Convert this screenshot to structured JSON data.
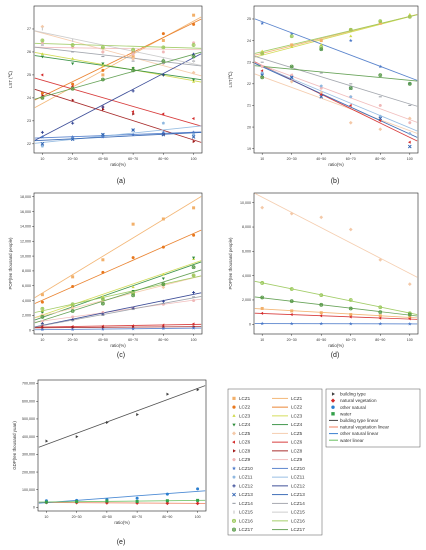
{
  "chart_data": [
    {
      "id": "a",
      "type": "scatter",
      "caption": "(a)",
      "xlabel": "ratio(%)",
      "ylabel": "LST (℃)",
      "categories": [
        "10",
        "20~30",
        "40~50",
        "60~70",
        "80~90",
        "100"
      ],
      "ylim": [
        21.6,
        28
      ],
      "yticks": [
        22,
        23,
        24,
        25,
        26,
        27
      ],
      "series": [
        {
          "name": "LCZ1",
          "color": "#f2b06a",
          "marker": "square",
          "values": [
            24.0,
            24.4,
            25.0,
            25.8,
            26.5,
            27.6
          ]
        },
        {
          "name": "LCZ2",
          "color": "#e8781e",
          "marker": "circle",
          "values": [
            24.2,
            24.6,
            25.2,
            26.0,
            26.8,
            27.2
          ]
        },
        {
          "name": "LCZ3",
          "color": "#cfd94a",
          "marker": "triangle",
          "values": [
            25.9,
            25.7,
            25.4,
            25.3,
            25.0,
            24.7
          ]
        },
        {
          "name": "LCZ4",
          "color": "#2e8b3a",
          "marker": "triangle-down",
          "values": [
            25.8,
            25.5,
            25.5,
            25.3,
            25.0,
            24.8
          ]
        },
        {
          "name": "LCZ5",
          "color": "#f4c9a8",
          "marker": "diamond",
          "values": [
            27.1,
            26.2,
            26.0,
            25.7,
            25.5,
            25.1
          ]
        },
        {
          "name": "LCZ6",
          "color": "#d42a2a",
          "marker": "triangle-left",
          "values": [
            25.0,
            24.5,
            23.6,
            23.4,
            23.3,
            23.1
          ]
        },
        {
          "name": "LCZ8",
          "color": "#a01818",
          "marker": "triangle-right",
          "values": [
            24.1,
            23.9,
            23.5,
            23.3,
            22.4,
            22.1
          ]
        },
        {
          "name": "LCZ9",
          "color": "#f0b8b8",
          "marker": "hexagon",
          "values": [
            26.4,
            26.2,
            26.0,
            25.9,
            26.0,
            26.4
          ]
        },
        {
          "name": "LCZ10",
          "color": "#4a78c8",
          "marker": "star",
          "values": [
            22.3,
            22.3,
            22.3,
            22.4,
            22.5,
            22.5
          ]
        },
        {
          "name": "LCZ11",
          "color": "#8fb8e0",
          "marker": "pentagon",
          "values": [
            21.9,
            22.2,
            22.4,
            22.6,
            22.9,
            22.4
          ]
        },
        {
          "name": "LCZ12",
          "color": "#2b3d8f",
          "marker": "plus",
          "values": [
            22.5,
            22.9,
            23.6,
            24.3,
            25.0,
            25.9
          ]
        },
        {
          "name": "LCZ13",
          "color": "#2b5fb0",
          "marker": "x",
          "values": [
            22.0,
            22.2,
            22.4,
            22.6,
            22.4,
            22.3
          ]
        },
        {
          "name": "LCZ14",
          "color": "#9ca0a8",
          "marker": "dash",
          "values": [
            26.3,
            26.0,
            25.8,
            25.6,
            25.5,
            25.6
          ]
        },
        {
          "name": "LCZ15",
          "color": "#c8c8c8",
          "marker": "bar",
          "values": [
            27.0,
            26.5,
            26.2,
            26.0,
            25.7,
            25.6
          ]
        },
        {
          "name": "LCZ16",
          "color": "#9ac85a",
          "marker": "circle-plus",
          "values": [
            26.5,
            26.3,
            26.2,
            26.1,
            26.2,
            26.3
          ]
        },
        {
          "name": "LCZ17",
          "color": "#5a9b4a",
          "marker": "circle-x",
          "values": [
            24.0,
            24.4,
            24.8,
            25.2,
            25.6,
            25.8
          ]
        }
      ]
    },
    {
      "id": "b",
      "type": "scatter",
      "caption": "(b)",
      "xlabel": "ratio(%)",
      "ylabel": "LST(℃)",
      "categories": [
        "10",
        "20~30",
        "40~50",
        "60~70",
        "80~90",
        "100"
      ],
      "ylim": [
        18.8,
        25.6
      ],
      "yticks": [
        19,
        20,
        21,
        22,
        23,
        24,
        25
      ],
      "series": [
        {
          "name": "LCZ1",
          "color": "#f2b06a",
          "marker": "square",
          "values": [
            23.4,
            23.8,
            24.0,
            24.5,
            24.8,
            25.1
          ]
        },
        {
          "name": "LCZ3",
          "color": "#cfd94a",
          "marker": "triangle",
          "values": [
            23.5,
            23.7,
            23.8,
            24.2,
            24.9,
            25.2
          ]
        },
        {
          "name": "LCZ5",
          "color": "#f4c9a8",
          "marker": "diamond",
          "values": [
            22.3,
            22.1,
            21.6,
            20.2,
            19.9,
            20.4
          ]
        },
        {
          "name": "LCZ6",
          "color": "#d42a2a",
          "marker": "triangle-left",
          "values": [
            22.6,
            22.4,
            21.5,
            21.0,
            20.3,
            19.3
          ]
        },
        {
          "name": "LCZ9",
          "color": "#f0b8b8",
          "marker": "hexagon",
          "values": [
            22.8,
            22.4,
            21.8,
            21.4,
            21.0,
            20.2
          ]
        },
        {
          "name": "LCZ10",
          "color": "#4a78c8",
          "marker": "star",
          "values": [
            24.8,
            24.3,
            23.6,
            24.0,
            22.8,
            22.0
          ]
        },
        {
          "name": "LCZ11",
          "color": "#8fb8e0",
          "marker": "pentagon",
          "values": [
            22.5,
            22.3,
            21.9,
            21.4,
            20.5,
            19.7
          ]
        },
        {
          "name": "LCZ13",
          "color": "#2b5fb0",
          "marker": "x",
          "values": [
            22.4,
            22.3,
            21.4,
            21.8,
            20.4,
            19.1
          ]
        },
        {
          "name": "LCZ14",
          "color": "#9ca0a8",
          "marker": "dash",
          "values": [
            23.0,
            22.8,
            22.5,
            22.0,
            21.4,
            21.0
          ]
        },
        {
          "name": "LCZ16",
          "color": "#9ac85a",
          "marker": "circle-plus",
          "values": [
            23.4,
            24.2,
            23.7,
            24.5,
            24.9,
            25.1
          ]
        },
        {
          "name": "LCZ17",
          "color": "#5a9b4a",
          "marker": "circle-x",
          "values": [
            22.3,
            22.8,
            23.6,
            21.8,
            22.4,
            22.0
          ]
        }
      ]
    },
    {
      "id": "c",
      "type": "scatter",
      "caption": "(c)",
      "xlabel": "ratio(%)",
      "ylabel": "POP(ten thousand people)",
      "categories": [
        "10",
        "20~30",
        "40~50",
        "60~70",
        "80~90",
        "100"
      ],
      "ylim": [
        -500,
        18500
      ],
      "yticks": [
        0,
        2000,
        4000,
        6000,
        8000,
        10000,
        12000,
        14000,
        16000,
        18000
      ],
      "yticklabels": [
        "0",
        "2,000",
        "4,000",
        "6,000",
        "8,000",
        "10,000",
        "12,000",
        "14,000",
        "16,000",
        "18,000"
      ],
      "series": [
        {
          "name": "LCZ1",
          "color": "#f2b06a",
          "marker": "square",
          "values": [
            4800,
            7200,
            9500,
            14300,
            15000,
            16500
          ]
        },
        {
          "name": "LCZ2",
          "color": "#e8781e",
          "marker": "circle",
          "values": [
            3800,
            5900,
            7800,
            9800,
            11200,
            12800
          ]
        },
        {
          "name": "LCZ3",
          "color": "#cfd94a",
          "marker": "triangle",
          "values": [
            2600,
            3300,
            4500,
            5800,
            7500,
            9600
          ]
        },
        {
          "name": "LCZ4",
          "color": "#2e8b3a",
          "marker": "triangle-down",
          "values": [
            2400,
            3100,
            4200,
            5300,
            7000,
            9800
          ]
        },
        {
          "name": "LCZ5",
          "color": "#f4c9a8",
          "marker": "diamond",
          "values": [
            2100,
            3000,
            3800,
            4900,
            5800,
            7400
          ]
        },
        {
          "name": "LCZ6",
          "color": "#d42a2a",
          "marker": "triangle-left",
          "values": [
            500,
            500,
            550,
            600,
            700,
            850
          ]
        },
        {
          "name": "LCZ8",
          "color": "#a01818",
          "marker": "triangle-right",
          "values": [
            350,
            380,
            400,
            420,
            450,
            500
          ]
        },
        {
          "name": "LCZ9",
          "color": "#f0b8b8",
          "marker": "hexagon",
          "values": [
            1200,
            1800,
            2400,
            3000,
            3500,
            4000
          ]
        },
        {
          "name": "LCZ10",
          "color": "#4a78c8",
          "marker": "star",
          "values": [
            100,
            120,
            150,
            200,
            250,
            300
          ]
        },
        {
          "name": "LCZ12",
          "color": "#2b3d8f",
          "marker": "plus",
          "values": [
            900,
            1400,
            2200,
            3000,
            3900,
            5100
          ]
        },
        {
          "name": "LCZ14",
          "color": "#9ca0a8",
          "marker": "dash",
          "values": [
            800,
            1300,
            2000,
            2800,
            3600,
            4500
          ]
        },
        {
          "name": "LCZ16",
          "color": "#9ac85a",
          "marker": "circle-plus",
          "values": [
            2900,
            3500,
            4200,
            5000,
            6200,
            7400
          ]
        },
        {
          "name": "LCZ17",
          "color": "#5a9b4a",
          "marker": "circle-x",
          "values": [
            1800,
            2600,
            3600,
            4700,
            6200,
            8500
          ]
        }
      ]
    },
    {
      "id": "d",
      "type": "scatter",
      "caption": "(d)",
      "xlabel": "ratio(%)",
      "ylabel": "POP(ten thousand people)",
      "categories": [
        "10",
        "20~30",
        "40~50",
        "60~70",
        "80~90",
        "100"
      ],
      "ylim": [
        -800,
        10800
      ],
      "yticks": [
        0,
        2000,
        4000,
        6000,
        8000,
        10000
      ],
      "yticklabels": [
        "0",
        "2,000",
        "4,000",
        "6,000",
        "8,000",
        "10,000"
      ],
      "series": [
        {
          "name": "LCZ1",
          "color": "#f2b06a",
          "marker": "square",
          "values": [
            1300,
            1100,
            950,
            800,
            700,
            600
          ]
        },
        {
          "name": "LCZ5",
          "color": "#f4c9a8",
          "marker": "diamond",
          "values": [
            9600,
            9100,
            8800,
            7800,
            5300,
            3300
          ]
        },
        {
          "name": "LCZ6",
          "color": "#d42a2a",
          "marker": "triangle-left",
          "values": [
            900,
            800,
            700,
            600,
            500,
            450
          ]
        },
        {
          "name": "LCZ10",
          "color": "#4a78c8",
          "marker": "star",
          "values": [
            60,
            50,
            50,
            40,
            40,
            30
          ]
        },
        {
          "name": "LCZ16",
          "color": "#9ac85a",
          "marker": "circle-plus",
          "values": [
            3400,
            2900,
            2400,
            2000,
            1400,
            900
          ]
        },
        {
          "name": "LCZ17",
          "color": "#5a9b4a",
          "marker": "circle-x",
          "values": [
            2200,
            1900,
            1600,
            1300,
            1000,
            800
          ]
        }
      ]
    },
    {
      "id": "e",
      "type": "scatter",
      "caption": "(e)",
      "xlabel": "ratio(%)",
      "ylabel": "GDP(ten thousand yuan)",
      "categories": [
        "10",
        "20~30",
        "40~50",
        "60~70",
        "80~90",
        "100"
      ],
      "ylim": [
        -20000,
        720000
      ],
      "yticks": [
        0,
        100000,
        200000,
        300000,
        400000,
        500000,
        600000,
        700000
      ],
      "yticklabels": [
        "0",
        "100,000",
        "200,000",
        "300,000",
        "400,000",
        "500,000",
        "600,000",
        "700,000"
      ],
      "series": [
        {
          "name": "building type",
          "color": "#404040",
          "marker": "triangle-right",
          "line_color": "#404040",
          "values": [
            375000,
            400000,
            480000,
            525000,
            640000,
            665000
          ]
        },
        {
          "name": "natural vegetation",
          "color": "#d42a2a",
          "marker": "diamond",
          "line_color": "#f08060",
          "values": [
            28000,
            27000,
            26000,
            25000,
            24000,
            23000
          ]
        },
        {
          "name": "other natural",
          "color": "#2b7fd0",
          "marker": "circle",
          "line_color": "#3a7fd0",
          "values": [
            38000,
            40000,
            45000,
            52000,
            75000,
            105000
          ]
        },
        {
          "name": "water",
          "color": "#33a04a",
          "marker": "square",
          "line_color": "#6ac060",
          "values": [
            30000,
            33000,
            36000,
            34000,
            38000,
            40000
          ]
        }
      ]
    }
  ],
  "legend_lcz": {
    "rows": [
      {
        "name": "LCZ1",
        "color": "#f2b06a",
        "marker": "square"
      },
      {
        "name": "LCZ2",
        "color": "#e8781e",
        "marker": "circle"
      },
      {
        "name": "LCZ3",
        "color": "#cfd94a",
        "marker": "triangle"
      },
      {
        "name": "LCZ4",
        "color": "#2e8b3a",
        "marker": "triangle-down"
      },
      {
        "name": "LCZ5",
        "color": "#f4c9a8",
        "marker": "diamond"
      },
      {
        "name": "LCZ6",
        "color": "#d42a2a",
        "marker": "triangle-left"
      },
      {
        "name": "LCZ8",
        "color": "#a01818",
        "marker": "triangle-right"
      },
      {
        "name": "LCZ9",
        "color": "#f0b8b8",
        "marker": "hexagon"
      },
      {
        "name": "LCZ10",
        "color": "#4a78c8",
        "marker": "star"
      },
      {
        "name": "LCZ11",
        "color": "#8fb8e0",
        "marker": "pentagon"
      },
      {
        "name": "LCZ12",
        "color": "#2b3d8f",
        "marker": "plus"
      },
      {
        "name": "LCZ13",
        "color": "#2b5fb0",
        "marker": "x"
      },
      {
        "name": "LCZ14",
        "color": "#9ca0a8",
        "marker": "dash"
      },
      {
        "name": "LCZ15",
        "color": "#c8c8c8",
        "marker": "bar"
      },
      {
        "name": "LCZ16",
        "color": "#9ac85a",
        "marker": "circle-plus"
      },
      {
        "name": "LCZ17",
        "color": "#5a9b4a",
        "marker": "circle-x"
      }
    ]
  },
  "legend_types": {
    "markers": [
      {
        "name": "building type",
        "color": "#404040",
        "marker": "triangle-right"
      },
      {
        "name": "natural vegetation",
        "color": "#d42a2a",
        "marker": "diamond"
      },
      {
        "name": "other natural",
        "color": "#2b7fd0",
        "marker": "circle"
      },
      {
        "name": "water",
        "color": "#33a04a",
        "marker": "square"
      }
    ],
    "lines": [
      {
        "name": "building type linear",
        "color": "#404040"
      },
      {
        "name": "natural vegetation linear",
        "color": "#f08060"
      },
      {
        "name": "other natural linear",
        "color": "#3a7fd0"
      },
      {
        "name": "water linear",
        "color": "#6ac060"
      }
    ]
  }
}
